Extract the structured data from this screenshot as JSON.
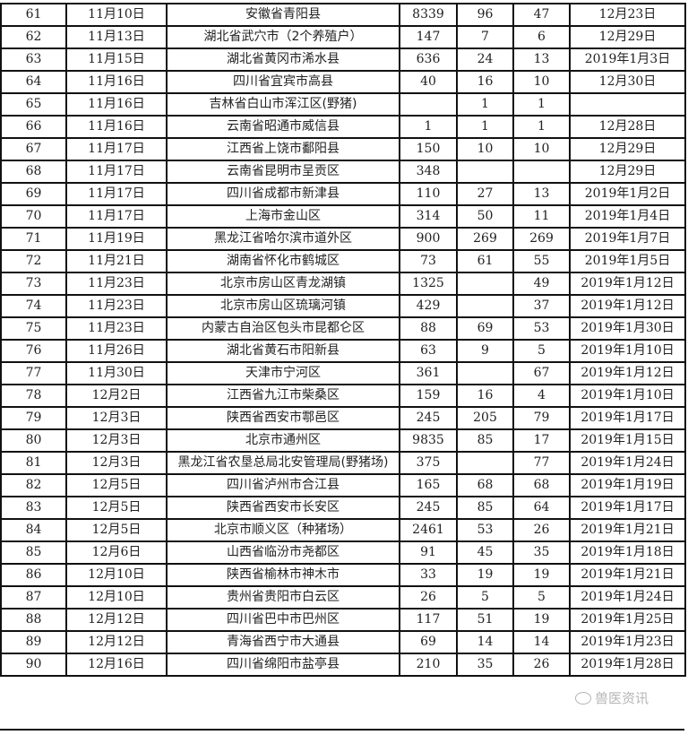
{
  "rows": [
    [
      "61",
      "11月10日",
      "安徽省青阳县",
      "8339",
      "96",
      "47",
      "12月23日"
    ],
    [
      "62",
      "11月13日",
      "湖北省武穴市（2个养殖户）",
      "147",
      "7",
      "6",
      "12月29日"
    ],
    [
      "63",
      "11月15日",
      "湖北省黄冈市浠水县",
      "636",
      "24",
      "13",
      "2019年1月3日"
    ],
    [
      "64",
      "11月16日",
      "四川省宜宾市高县",
      "40",
      "16",
      "10",
      "12月30日"
    ],
    [
      "65",
      "11月16日",
      "吉林省白山市浑江区(野猪)",
      "",
      "1",
      "1",
      ""
    ],
    [
      "66",
      "11月16日",
      "云南省昭通市威信县",
      "1",
      "1",
      "1",
      "12月28日"
    ],
    [
      "67",
      "11月17日",
      "江西省上饶市鄱阳县",
      "150",
      "10",
      "10",
      "12月29日"
    ],
    [
      "68",
      "11月17日",
      "云南省昆明市呈贡区",
      "348",
      "",
      "",
      "12月29日"
    ],
    [
      "69",
      "11月17日",
      "四川省成都市新津县",
      "110",
      "27",
      "13",
      "2019年1月2日"
    ],
    [
      "70",
      "11月17日",
      "上海市金山区",
      "314",
      "50",
      "11",
      "2019年1月4日"
    ],
    [
      "71",
      "11月19日",
      "黑龙江省哈尔滨市道外区",
      "900",
      "269",
      "269",
      "2019年1月7日"
    ],
    [
      "72",
      "11月21日",
      "湖南省怀化市鹤城区",
      "73",
      "61",
      "55",
      "2019年1月5日"
    ],
    [
      "73",
      "11月23日",
      "北京市房山区青龙湖镇",
      "1325",
      "",
      "49",
      "2019年1月12日"
    ],
    [
      "74",
      "11月23日",
      "北京市房山区琉璃河镇",
      "429",
      "",
      "37",
      "2019年1月12日"
    ],
    [
      "75",
      "11月23日",
      "内蒙古自治区包头市昆都仑区",
      "88",
      "69",
      "53",
      "2019年1月30日"
    ],
    [
      "76",
      "11月26日",
      "湖北省黄石市阳新县",
      "63",
      "9",
      "5",
      "2019年1月10日"
    ],
    [
      "77",
      "11月30日",
      "天津市宁河区",
      "361",
      "",
      "67",
      "2019年1月12日"
    ],
    [
      "78",
      "12月2日",
      "江西省九江市柴桑区",
      "159",
      "16",
      "4",
      "2019年1月10日"
    ],
    [
      "79",
      "12月3日",
      "陕西省西安市鄠邑区",
      "245",
      "205",
      "79",
      "2019年1月17日"
    ],
    [
      "80",
      "12月3日",
      "北京市通州区",
      "9835",
      "85",
      "17",
      "2019年1月15日"
    ],
    [
      "81",
      "12月3日",
      "黑龙江省农垦总局北安管理局(野猪场)",
      "375",
      "",
      "77",
      "2019年1月24日"
    ],
    [
      "82",
      "12月5日",
      "四川省泸州市合江县",
      "165",
      "68",
      "68",
      "2019年1月19日"
    ],
    [
      "83",
      "12月5日",
      "陕西省西安市长安区",
      "245",
      "85",
      "64",
      "2019年1月17日"
    ],
    [
      "84",
      "12月5日",
      "北京市顺义区（种猪场）",
      "2461",
      "53",
      "26",
      "2019年1月21日"
    ],
    [
      "85",
      "12月6日",
      "山西省临汾市尧都区",
      "91",
      "45",
      "35",
      "2019年1月18日"
    ],
    [
      "86",
      "12月10日",
      "陕西省榆林市神木市",
      "33",
      "19",
      "19",
      "2019年1月21日"
    ],
    [
      "87",
      "12月10日",
      "贵州省贵阳市白云区",
      "26",
      "5",
      "5",
      "2019年1月24日"
    ],
    [
      "88",
      "12月12日",
      "四川省巴中市巴州区",
      "117",
      "51",
      "19",
      "2019年1月25日"
    ],
    [
      "89",
      "12月12日",
      "青海省西宁市大通县",
      "69",
      "14",
      "14",
      "2019年1月23日"
    ],
    [
      "90",
      "12月16日",
      "四川省绵阳市盐亭县",
      "210",
      "35",
      "26",
      "2019年1月28日"
    ]
  ],
  "watermark": "兽医资讯"
}
